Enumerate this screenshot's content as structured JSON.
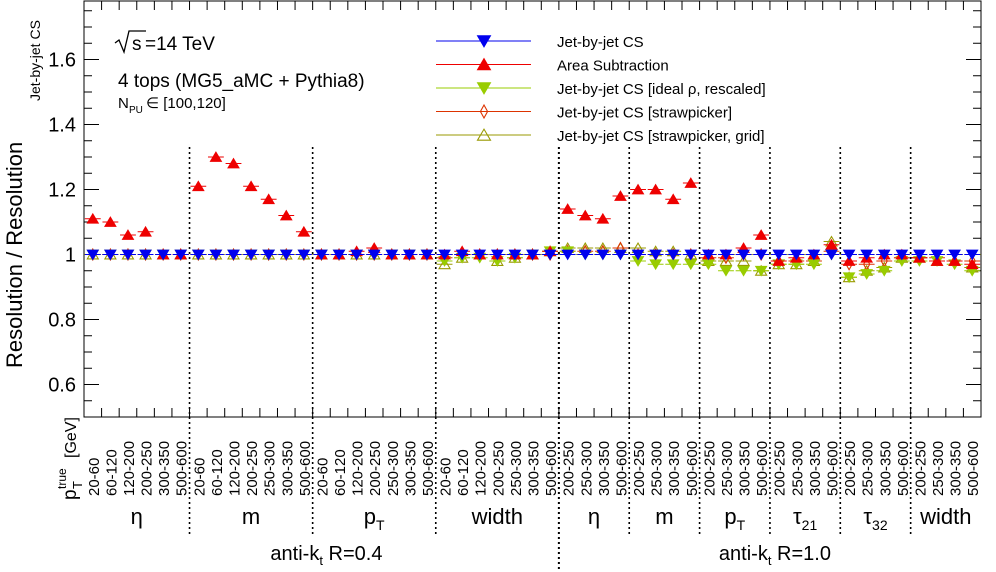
{
  "chart_data": {
    "type": "scatter",
    "y_axis_title": "Resolution / Resolution",
    "y_axis_subscript": "Jet-by-jet CS",
    "ylim": [
      0.5,
      1.78
    ],
    "y_ticks": [
      "0.6",
      "0.8",
      "1",
      "1.2",
      "1.4",
      "1.6"
    ],
    "x_axis_title": "p",
    "x_axis_title_sub": "T",
    "x_axis_title_sup": "true",
    "x_axis_unit": "[GeV]",
    "annotations": {
      "energy_sqrt": "s",
      "energy_value": "=14 TeV",
      "process": "4 tops (MG5_aMC + Pythia8)",
      "pileup_base": "N",
      "pileup_sub": "PU",
      "pileup_range": " ∈ [100,120]"
    },
    "legend_position": "top-center",
    "x_labels": [
      "20-60",
      "60-120",
      "120-200",
      "200-250",
      "300-350",
      "500-600",
      "20-60",
      "60-120",
      "120-200",
      "200-250",
      "250-300",
      "300-350",
      "500-600",
      "20-60",
      "60-120",
      "120-200",
      "200-250",
      "250-300",
      "300-350",
      "500-600",
      "20-60",
      "60-120",
      "120-200",
      "200-250",
      "250-300",
      "300-350",
      "500-600",
      "200-250",
      "250-300",
      "300-350",
      "500-600",
      "200-250",
      "250-300",
      "300-350",
      "500-600",
      "200-250",
      "250-300",
      "300-350",
      "500-600",
      "200-250",
      "250-300",
      "300-350",
      "500-600",
      "200-250",
      "250-300",
      "300-350",
      "500-600",
      "200-250",
      "250-300",
      "300-350",
      "500-600"
    ],
    "group_labels": [
      {
        "text": "η",
        "sub": ""
      },
      {
        "text": "m",
        "sub": ""
      },
      {
        "text": "p",
        "sub": "T"
      },
      {
        "text": "width",
        "sub": ""
      },
      {
        "text": "η",
        "sub": ""
      },
      {
        "text": "m",
        "sub": ""
      },
      {
        "text": "p",
        "sub": "T"
      },
      {
        "text": "τ",
        "sub": "21"
      },
      {
        "text": "τ",
        "sub": "32"
      },
      {
        "text": "width",
        "sub": ""
      }
    ],
    "group_sizes": [
      6,
      7,
      7,
      7,
      4,
      4,
      4,
      4,
      4,
      4
    ],
    "jet_labels": [
      {
        "text": "anti-k",
        "sub": "t",
        "rest": " R=0.4"
      },
      {
        "text": "anti-k",
        "sub": "t",
        "rest": " R=1.0"
      }
    ],
    "series": [
      {
        "name": "Jet-by-jet CS",
        "color": "#0000ee",
        "marker": "triangle-down-filled",
        "values": [
          1.0,
          1.0,
          1.0,
          1.0,
          1.0,
          1.0,
          1.0,
          1.0,
          1.0,
          1.0,
          1.0,
          1.0,
          1.0,
          1.0,
          1.0,
          1.0,
          1.0,
          1.0,
          1.0,
          1.0,
          1.0,
          1.0,
          1.0,
          1.0,
          1.0,
          1.0,
          1.0,
          1.0,
          1.0,
          1.0,
          1.0,
          1.0,
          1.0,
          1.0,
          1.0,
          1.0,
          1.0,
          1.0,
          1.0,
          1.0,
          1.0,
          1.0,
          1.0,
          1.0,
          1.0,
          1.0,
          1.0,
          1.0,
          1.0,
          1.0,
          1.0
        ]
      },
      {
        "name": "Area Subtraction",
        "color": "#ee0000",
        "marker": "triangle-up-filled",
        "values": [
          1.11,
          1.1,
          1.06,
          1.07,
          1.0,
          1.0,
          1.21,
          1.3,
          1.28,
          1.21,
          1.17,
          1.12,
          1.07,
          1.0,
          1.0,
          1.01,
          1.02,
          1.0,
          1.0,
          1.0,
          1.0,
          1.01,
          1.0,
          1.0,
          1.0,
          1.0,
          1.01,
          1.14,
          1.12,
          1.11,
          1.18,
          1.2,
          1.2,
          1.17,
          1.22,
          1.0,
          1.0,
          1.02,
          1.06,
          0.98,
          0.99,
          1.0,
          1.03,
          0.98,
          0.99,
          1.0,
          1.0,
          0.99,
          0.98,
          0.98,
          0.97
        ]
      },
      {
        "name": "Jet-by-jet CS [ideal   ρ, rescaled]",
        "color": "#99cc00",
        "marker": "triangle-down-filled",
        "values": [
          1.0,
          1.0,
          1.0,
          1.0,
          1.0,
          1.0,
          1.0,
          1.0,
          1.0,
          1.0,
          1.0,
          1.0,
          1.0,
          1.0,
          1.0,
          1.0,
          1.0,
          1.0,
          1.0,
          1.0,
          0.98,
          0.99,
          0.99,
          0.98,
          0.99,
          1.0,
          1.01,
          1.01,
          1.0,
          1.0,
          1.0,
          0.98,
          0.97,
          0.97,
          0.97,
          0.97,
          0.95,
          0.95,
          0.95,
          0.97,
          0.97,
          0.97,
          1.0,
          0.93,
          0.94,
          0.95,
          0.98,
          0.98,
          0.98,
          0.97,
          0.95
        ]
      },
      {
        "name": "Jet-by-jet CS [strawpicker]",
        "color": "#dd3300",
        "marker": "diamond-open",
        "values": [
          1.0,
          1.0,
          1.0,
          1.0,
          1.0,
          1.0,
          1.0,
          1.0,
          1.0,
          1.0,
          1.0,
          1.0,
          1.0,
          1.0,
          1.0,
          1.0,
          1.0,
          1.0,
          1.0,
          1.0,
          0.99,
          1.0,
          1.0,
          1.0,
          1.0,
          1.0,
          1.0,
          1.01,
          1.01,
          1.01,
          1.02,
          1.0,
          1.0,
          1.0,
          1.0,
          0.99,
          0.99,
          1.0,
          1.0,
          0.98,
          0.98,
          0.98,
          1.01,
          0.97,
          0.97,
          0.98,
          0.99,
          0.99,
          0.99,
          0.98,
          0.98
        ]
      },
      {
        "name": "Jet-by-jet CS [strawpicker, grid]",
        "color": "#999900",
        "marker": "triangle-up-open",
        "values": [
          1.0,
          1.0,
          1.0,
          1.0,
          1.0,
          1.0,
          1.0,
          1.0,
          1.0,
          1.0,
          1.0,
          1.0,
          1.0,
          1.0,
          1.0,
          1.0,
          1.0,
          1.0,
          1.0,
          1.0,
          0.97,
          0.99,
          1.0,
          0.98,
          0.99,
          1.0,
          1.01,
          1.02,
          1.02,
          1.02,
          1.02,
          1.02,
          1.01,
          1.01,
          1.0,
          0.98,
          0.98,
          0.98,
          0.95,
          0.97,
          0.97,
          0.98,
          1.04,
          0.93,
          0.95,
          0.96,
          0.99,
          0.99,
          0.98,
          0.98,
          0.96
        ]
      }
    ]
  }
}
